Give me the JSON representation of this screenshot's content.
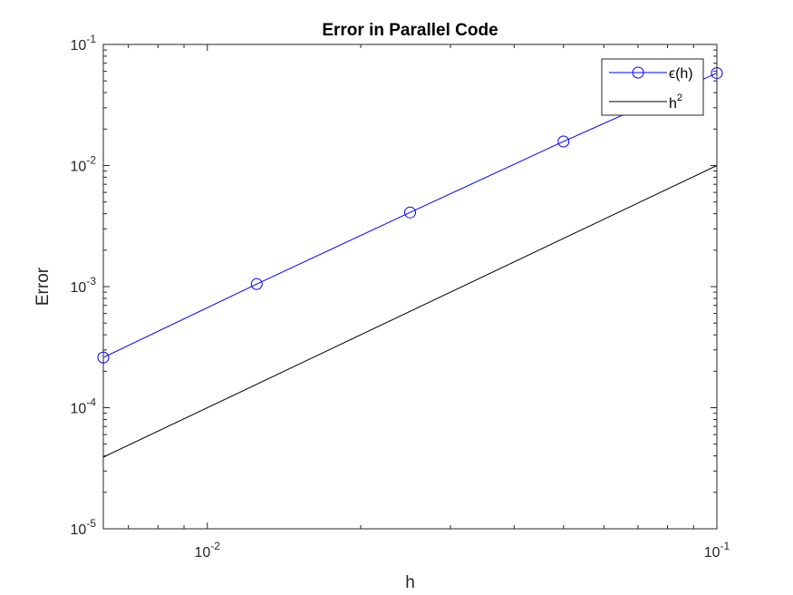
{
  "chart_data": {
    "type": "line",
    "title": "Error in Parallel Code",
    "xlabel": "h",
    "ylabel": "Error",
    "xscale": "log",
    "yscale": "log",
    "xlim": [
      0.00625,
      0.1
    ],
    "ylim": [
      1e-05,
      0.1
    ],
    "x_ticks": [
      {
        "value": 0.01,
        "base": "10",
        "exp": "-2"
      },
      {
        "value": 0.1,
        "base": "10",
        "exp": "-1"
      }
    ],
    "y_ticks": [
      {
        "value": 1e-05,
        "base": "10",
        "exp": "-5"
      },
      {
        "value": 0.0001,
        "base": "10",
        "exp": "-4"
      },
      {
        "value": 0.001,
        "base": "10",
        "exp": "-3"
      },
      {
        "value": 0.01,
        "base": "10",
        "exp": "-2"
      },
      {
        "value": 0.1,
        "base": "10",
        "exp": "-1"
      }
    ],
    "grid": false,
    "legend_position": "top-right",
    "series": [
      {
        "name": "ϵ(h)",
        "legend_main": "ϵ(h)",
        "color": "#0000ff",
        "marker": "circle",
        "x": [
          0.00625,
          0.0125,
          0.025,
          0.05,
          0.1
        ],
        "y": [
          0.00026,
          0.00105,
          0.0041,
          0.0158,
          0.058
        ]
      },
      {
        "name": "h2",
        "legend_main": "h",
        "legend_sup": "2",
        "color": "#000000",
        "marker": "none",
        "x": [
          0.00625,
          0.1
        ],
        "y": [
          3.90625e-05,
          0.01
        ]
      }
    ]
  }
}
